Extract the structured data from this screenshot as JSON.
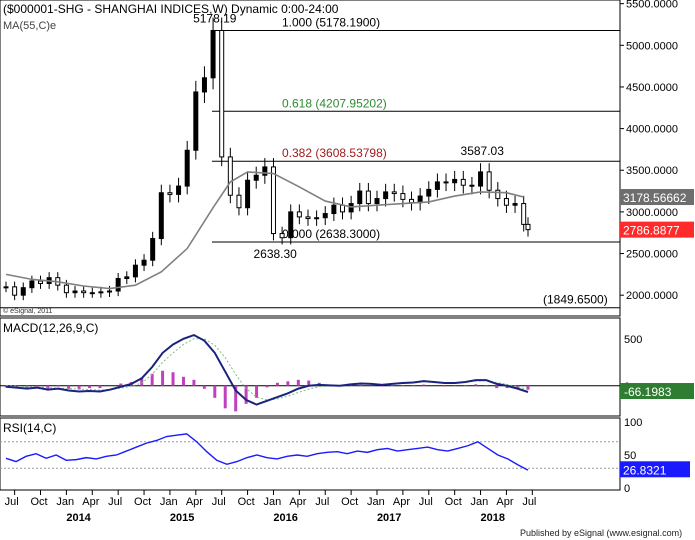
{
  "header": {
    "title": "($000001-SHG - SHANGHAI INDICES,W) Dynamic 0:00-24:00",
    "ma_label": "MA(55,C)e",
    "copyright": "© eSignal, 2011",
    "footer": "Published by eSignal (www.esignal.com)"
  },
  "colors": {
    "candle": "#000000",
    "up_bar": "#000000",
    "ma": "#808080",
    "fib_0618": "#2e8b2e",
    "fib_0382": "#a01c1c",
    "macd_line": "#1a237e",
    "macd_signal": "#7fbf7f",
    "macd_hist": "#c040c0",
    "rsi": "#1a1aff",
    "current_price_box": "#ff2b2b",
    "ma_box": "#6e6e6e",
    "macd_box": "#2e7d32",
    "rsi_box": "#1a1aff"
  },
  "chart_data": [
    {
      "type": "candlestick",
      "panel": "price",
      "y_axis_ticks": [
        "5500.0000",
        "5000.0000",
        "4500.0000",
        "4000.0000",
        "3500.0000",
        "3000.0000",
        "2500.0000",
        "2000.0000"
      ],
      "ylim": [
        1750,
        5520
      ],
      "x_axis": {
        "month_labels": [
          "Jul",
          "Oct",
          "Jan",
          "Apr",
          "Jul",
          "Oct",
          "Jan",
          "Apr",
          "Jul",
          "Oct",
          "Jan",
          "Apr",
          "Jul",
          "Oct",
          "Jan",
          "Apr",
          "Jul",
          "Oct",
          "Jan",
          "Apr",
          "Jul"
        ],
        "year_labels": [
          "2014",
          "2015",
          "2016",
          "2017",
          "2018"
        ]
      },
      "series_close": [
        {
          "t": "2013-06",
          "v": 2100
        },
        {
          "t": "2013-07",
          "v": 2000
        },
        {
          "t": "2013-08",
          "v": 2090
        },
        {
          "t": "2013-09",
          "v": 2170
        },
        {
          "t": "2013-10",
          "v": 2140
        },
        {
          "t": "2013-11",
          "v": 2210
        },
        {
          "t": "2013-12",
          "v": 2120
        },
        {
          "t": "2014-01",
          "v": 2030
        },
        {
          "t": "2014-02",
          "v": 2050
        },
        {
          "t": "2014-03",
          "v": 2030
        },
        {
          "t": "2014-04",
          "v": 2030
        },
        {
          "t": "2014-05",
          "v": 2040
        },
        {
          "t": "2014-06",
          "v": 2050
        },
        {
          "t": "2014-07",
          "v": 2200
        },
        {
          "t": "2014-08",
          "v": 2220
        },
        {
          "t": "2014-09",
          "v": 2360
        },
        {
          "t": "2014-10",
          "v": 2420
        },
        {
          "t": "2014-11",
          "v": 2680
        },
        {
          "t": "2014-12",
          "v": 3230
        },
        {
          "t": "2015-01",
          "v": 3210
        },
        {
          "t": "2015-02",
          "v": 3310
        },
        {
          "t": "2015-03",
          "v": 3740
        },
        {
          "t": "2015-04",
          "v": 4440
        },
        {
          "t": "2015-05",
          "v": 4610
        },
        {
          "t": "2015-06",
          "v": 5178
        },
        {
          "t": "2015-07",
          "v": 3660
        },
        {
          "t": "2015-08",
          "v": 3200
        },
        {
          "t": "2015-09",
          "v": 3050
        },
        {
          "t": "2015-10",
          "v": 3380
        },
        {
          "t": "2015-11",
          "v": 3440
        },
        {
          "t": "2015-12",
          "v": 3540
        },
        {
          "t": "2016-01",
          "v": 2740
        },
        {
          "t": "2016-02",
          "v": 2690
        },
        {
          "t": "2016-03",
          "v": 3000
        },
        {
          "t": "2016-04",
          "v": 2940
        },
        {
          "t": "2016-05",
          "v": 2920
        },
        {
          "t": "2016-06",
          "v": 2930
        },
        {
          "t": "2016-07",
          "v": 2980
        },
        {
          "t": "2016-08",
          "v": 3080
        },
        {
          "t": "2016-09",
          "v": 3000
        },
        {
          "t": "2016-10",
          "v": 3100
        },
        {
          "t": "2016-11",
          "v": 3250
        },
        {
          "t": "2016-12",
          "v": 3100
        },
        {
          "t": "2017-01",
          "v": 3160
        },
        {
          "t": "2017-02",
          "v": 3240
        },
        {
          "t": "2017-03",
          "v": 3220
        },
        {
          "t": "2017-04",
          "v": 3150
        },
        {
          "t": "2017-05",
          "v": 3110
        },
        {
          "t": "2017-06",
          "v": 3190
        },
        {
          "t": "2017-07",
          "v": 3270
        },
        {
          "t": "2017-08",
          "v": 3360
        },
        {
          "t": "2017-09",
          "v": 3350
        },
        {
          "t": "2017-10",
          "v": 3390
        },
        {
          "t": "2017-11",
          "v": 3320
        },
        {
          "t": "2017-12",
          "v": 3310
        },
        {
          "t": "2018-01",
          "v": 3480
        },
        {
          "t": "2018-02",
          "v": 3260
        },
        {
          "t": "2018-03",
          "v": 3160
        },
        {
          "t": "2018-04",
          "v": 3080
        },
        {
          "t": "2018-05",
          "v": 3100
        },
        {
          "t": "2018-06",
          "v": 2850
        },
        {
          "t": "2018-06b",
          "v": 2787
        }
      ],
      "ma_55": [
        {
          "t": "2013-06",
          "v": 2250
        },
        {
          "t": "2013-09",
          "v": 2190
        },
        {
          "t": "2013-12",
          "v": 2160
        },
        {
          "t": "2014-03",
          "v": 2110
        },
        {
          "t": "2014-06",
          "v": 2080
        },
        {
          "t": "2014-09",
          "v": 2120
        },
        {
          "t": "2014-12",
          "v": 2280
        },
        {
          "t": "2015-03",
          "v": 2560
        },
        {
          "t": "2015-06",
          "v": 3050
        },
        {
          "t": "2015-08",
          "v": 3360
        },
        {
          "t": "2015-10",
          "v": 3480
        },
        {
          "t": "2016-01",
          "v": 3460
        },
        {
          "t": "2016-04",
          "v": 3300
        },
        {
          "t": "2016-07",
          "v": 3130
        },
        {
          "t": "2016-10",
          "v": 3060
        },
        {
          "t": "2017-01",
          "v": 3080
        },
        {
          "t": "2017-04",
          "v": 3100
        },
        {
          "t": "2017-07",
          "v": 3120
        },
        {
          "t": "2017-10",
          "v": 3190
        },
        {
          "t": "2018-01",
          "v": 3240
        },
        {
          "t": "2018-04",
          "v": 3230
        },
        {
          "t": "2018-06",
          "v": 3179
        }
      ],
      "annotations": [
        {
          "text": "5178.19",
          "x": "2015-06",
          "y": 5178
        },
        {
          "text": "3587.03",
          "x": "2018-01",
          "y": 3587
        },
        {
          "text": "2638.30",
          "x": "2016-01",
          "y": 2638
        }
      ],
      "fib_levels": [
        {
          "label": "1.000 (5178.1900)",
          "value": 5178.19,
          "color": "#000000"
        },
        {
          "label": "0.618 (4207.95202)",
          "value": 4207.95202,
          "color": "#2e8b2e"
        },
        {
          "label": "0.382 (3608.53798)",
          "value": 3608.53798,
          "color": "#a01c1c"
        },
        {
          "label": "0.000 (2638.3000)",
          "value": 2638.3,
          "color": "#000000"
        },
        {
          "label": "(1849.6500)",
          "value": 1849.65,
          "color": "#000000"
        }
      ],
      "right_labels": [
        {
          "label": "3178.56662",
          "value": 3178.56662,
          "kind": "ma"
        },
        {
          "label": "2786.8877",
          "value": 2786.8877,
          "kind": "price"
        }
      ]
    },
    {
      "type": "line",
      "panel": "macd",
      "title": "MACD(12,26,9,C)",
      "y_axis_ticks": [
        "500",
        "0"
      ],
      "ylim": [
        -300,
        700
      ],
      "current_label": "-66.1983",
      "series": [
        {
          "name": "MACD",
          "values": [
            -10,
            -20,
            -30,
            -20,
            -40,
            -30,
            -50,
            -60,
            -55,
            -60,
            -40,
            -10,
            20,
            80,
            200,
            350,
            440,
            500,
            540,
            480,
            350,
            150,
            -50,
            -150,
            -200,
            -160,
            -120,
            -80,
            -30,
            0,
            10,
            5,
            0,
            15,
            25,
            20,
            10,
            20,
            30,
            35,
            50,
            40,
            30,
            30,
            40,
            60,
            60,
            20,
            0,
            -30,
            -66
          ]
        },
        {
          "name": "Signal",
          "values": [
            0,
            -5,
            -10,
            -15,
            -20,
            -25,
            -30,
            -35,
            -40,
            -45,
            -40,
            -25,
            -5,
            30,
            120,
            250,
            350,
            440,
            500,
            500,
            430,
            300,
            120,
            -30,
            -120,
            -150,
            -140,
            -110,
            -70,
            -35,
            -10,
            0,
            0,
            10,
            18,
            20,
            15,
            18,
            25,
            30,
            42,
            40,
            35,
            32,
            38,
            50,
            55,
            35,
            15,
            -10,
            -40
          ]
        }
      ]
    },
    {
      "type": "line",
      "panel": "rsi",
      "title": "RSI(14,C)",
      "y_axis_ticks": [
        "100",
        "50",
        "0"
      ],
      "ylim": [
        0,
        100
      ],
      "current_label": "26.8321",
      "series": [
        {
          "name": "RSI",
          "values": [
            45,
            40,
            48,
            52,
            45,
            50,
            42,
            43,
            46,
            44,
            48,
            50,
            56,
            62,
            68,
            72,
            78,
            80,
            82,
            70,
            55,
            42,
            36,
            40,
            46,
            50,
            46,
            44,
            48,
            50,
            48,
            52,
            54,
            55,
            52,
            56,
            54,
            58,
            60,
            56,
            58,
            60,
            62,
            58,
            56,
            60,
            64,
            70,
            60,
            50,
            44,
            35,
            27
          ]
        }
      ]
    }
  ]
}
